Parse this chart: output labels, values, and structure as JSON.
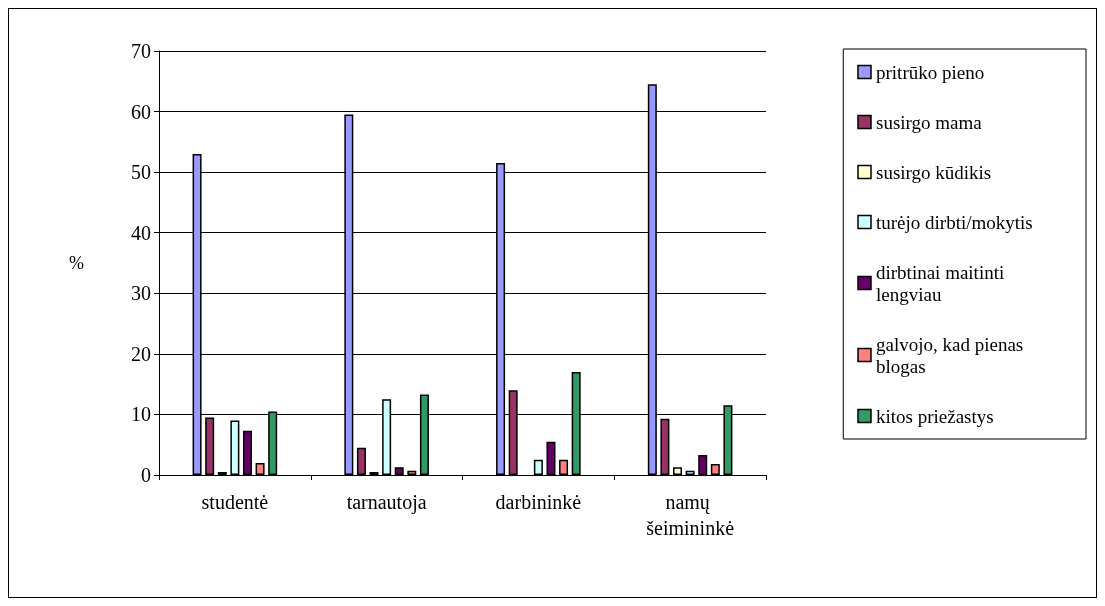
{
  "chart_data": {
    "type": "bar",
    "ylabel": "%",
    "categories": [
      "studentė",
      "tarnautoja",
      "darbininkė",
      "namų šeimininkė"
    ],
    "ylim": [
      0,
      70
    ],
    "yticks": [
      0,
      10,
      20,
      30,
      40,
      50,
      60,
      70
    ],
    "grid": "y",
    "legend": "right",
    "series": [
      {
        "name": "pritrūko pieno",
        "color": "#9999ff",
        "values": [
          53,
          59.5,
          51.5,
          64.5
        ]
      },
      {
        "name": "susirgo mama",
        "color": "#993366",
        "values": [
          9.5,
          4.5,
          14,
          9.3
        ]
      },
      {
        "name": "susirgo kūdikis",
        "color": "#ffffcc",
        "values": [
          0.5,
          0.5,
          0,
          1.3
        ]
      },
      {
        "name": "turėjo dirbti/mokytis",
        "color": "#ccffff",
        "values": [
          9,
          12.5,
          2.5,
          0.7
        ]
      },
      {
        "name": "dirbtinai maitinti lengviau",
        "color": "#660066",
        "values": [
          7.3,
          1.3,
          5.5,
          3.3
        ]
      },
      {
        "name": "galvojo, kad pienas blogas",
        "color": "#ff8080",
        "values": [
          2,
          0.7,
          2.5,
          1.8
        ]
      },
      {
        "name": "kitos priežastys",
        "color": "#339966",
        "values": [
          10.5,
          13.3,
          17,
          11.5
        ]
      }
    ]
  }
}
